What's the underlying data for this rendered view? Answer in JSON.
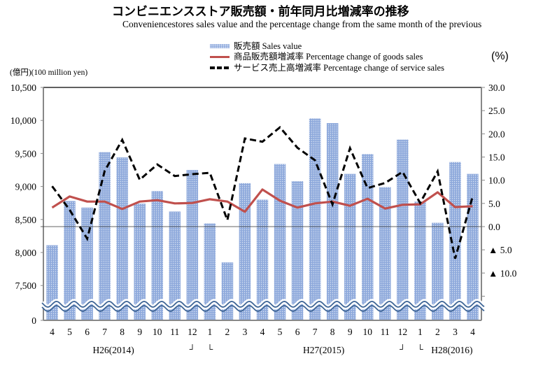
{
  "chart_data": {
    "type": "bar",
    "title": "コンビニエンスストア販売額・前年同月比増減率の推移",
    "subtitle": "Conveniencestores sales value and the percentage change from the same month of the previous",
    "left_axis_label": "(億円)(100 million yen)",
    "right_axis_label": "(%)",
    "categories": [
      "4",
      "5",
      "6",
      "7",
      "8",
      "9",
      "10",
      "11",
      "12",
      "1",
      "2",
      "3",
      "4",
      "5",
      "6",
      "7",
      "8",
      "9",
      "10",
      "11",
      "12",
      "1",
      "2",
      "3",
      "4"
    ],
    "year_groups": [
      {
        "label": "H26(2014)"
      },
      {
        "label": "H27(2015)"
      },
      {
        "label": "H28(2016)"
      }
    ],
    "year_break_marks": [
      "┘",
      "└",
      "┘",
      "└"
    ],
    "left_axis": {
      "ticks": [
        "10,500",
        "10,000",
        "9,500",
        "9,000",
        "8,500",
        "8,000",
        "7,500",
        "0"
      ],
      "tick_values": [
        10500,
        10000,
        9500,
        9000,
        8500,
        8000,
        7500,
        0
      ],
      "range": [
        7000,
        10500
      ],
      "axis_break": true
    },
    "right_axis": {
      "ticks": [
        "30.0",
        "25.0",
        "20.0",
        "15.0",
        "10.0",
        "5.0",
        "0.0",
        "▲ 5.0",
        "▲ 10.0"
      ],
      "tick_values": [
        30,
        25,
        20,
        15,
        10,
        5,
        0,
        -5,
        -10
      ],
      "range": [
        -20,
        30
      ]
    },
    "series": [
      {
        "name": "販売額 Sales value",
        "type": "bar",
        "axis": "left",
        "color": "#8faadc",
        "values": [
          8110,
          8780,
          8680,
          9520,
          9440,
          8740,
          8930,
          8620,
          9250,
          8440,
          7850,
          9050,
          8800,
          9340,
          9080,
          10030,
          9960,
          9190,
          9490,
          8990,
          9710,
          8770,
          8450,
          9370,
          9190
        ]
      },
      {
        "name": "商品販売額増減率 Percentage change of goods sales",
        "type": "line",
        "axis": "right",
        "color": "#c0504d",
        "values": [
          4.1,
          6.5,
          5.4,
          5.4,
          3.8,
          5.4,
          5.7,
          5.0,
          5.1,
          5.9,
          5.4,
          3.2,
          8.0,
          5.6,
          4.1,
          5.0,
          5.4,
          4.5,
          6.0,
          3.9,
          4.7,
          4.8,
          7.4,
          4.2,
          4.4
        ]
      },
      {
        "name": "サービス売上高増減率 Percentage change of service sales",
        "type": "line",
        "style": "dashed",
        "axis": "right",
        "color": "#000000",
        "values": [
          8.7,
          3.6,
          -2.6,
          12.0,
          18.7,
          10.1,
          13.4,
          10.9,
          11.3,
          11.6,
          1.4,
          19.0,
          18.3,
          21.4,
          17.0,
          14.3,
          4.8,
          16.9,
          8.3,
          9.4,
          11.8,
          5.1,
          11.9,
          -6.9,
          6.5
        ]
      }
    ],
    "legend_placement": "top-center",
    "grid": false
  }
}
